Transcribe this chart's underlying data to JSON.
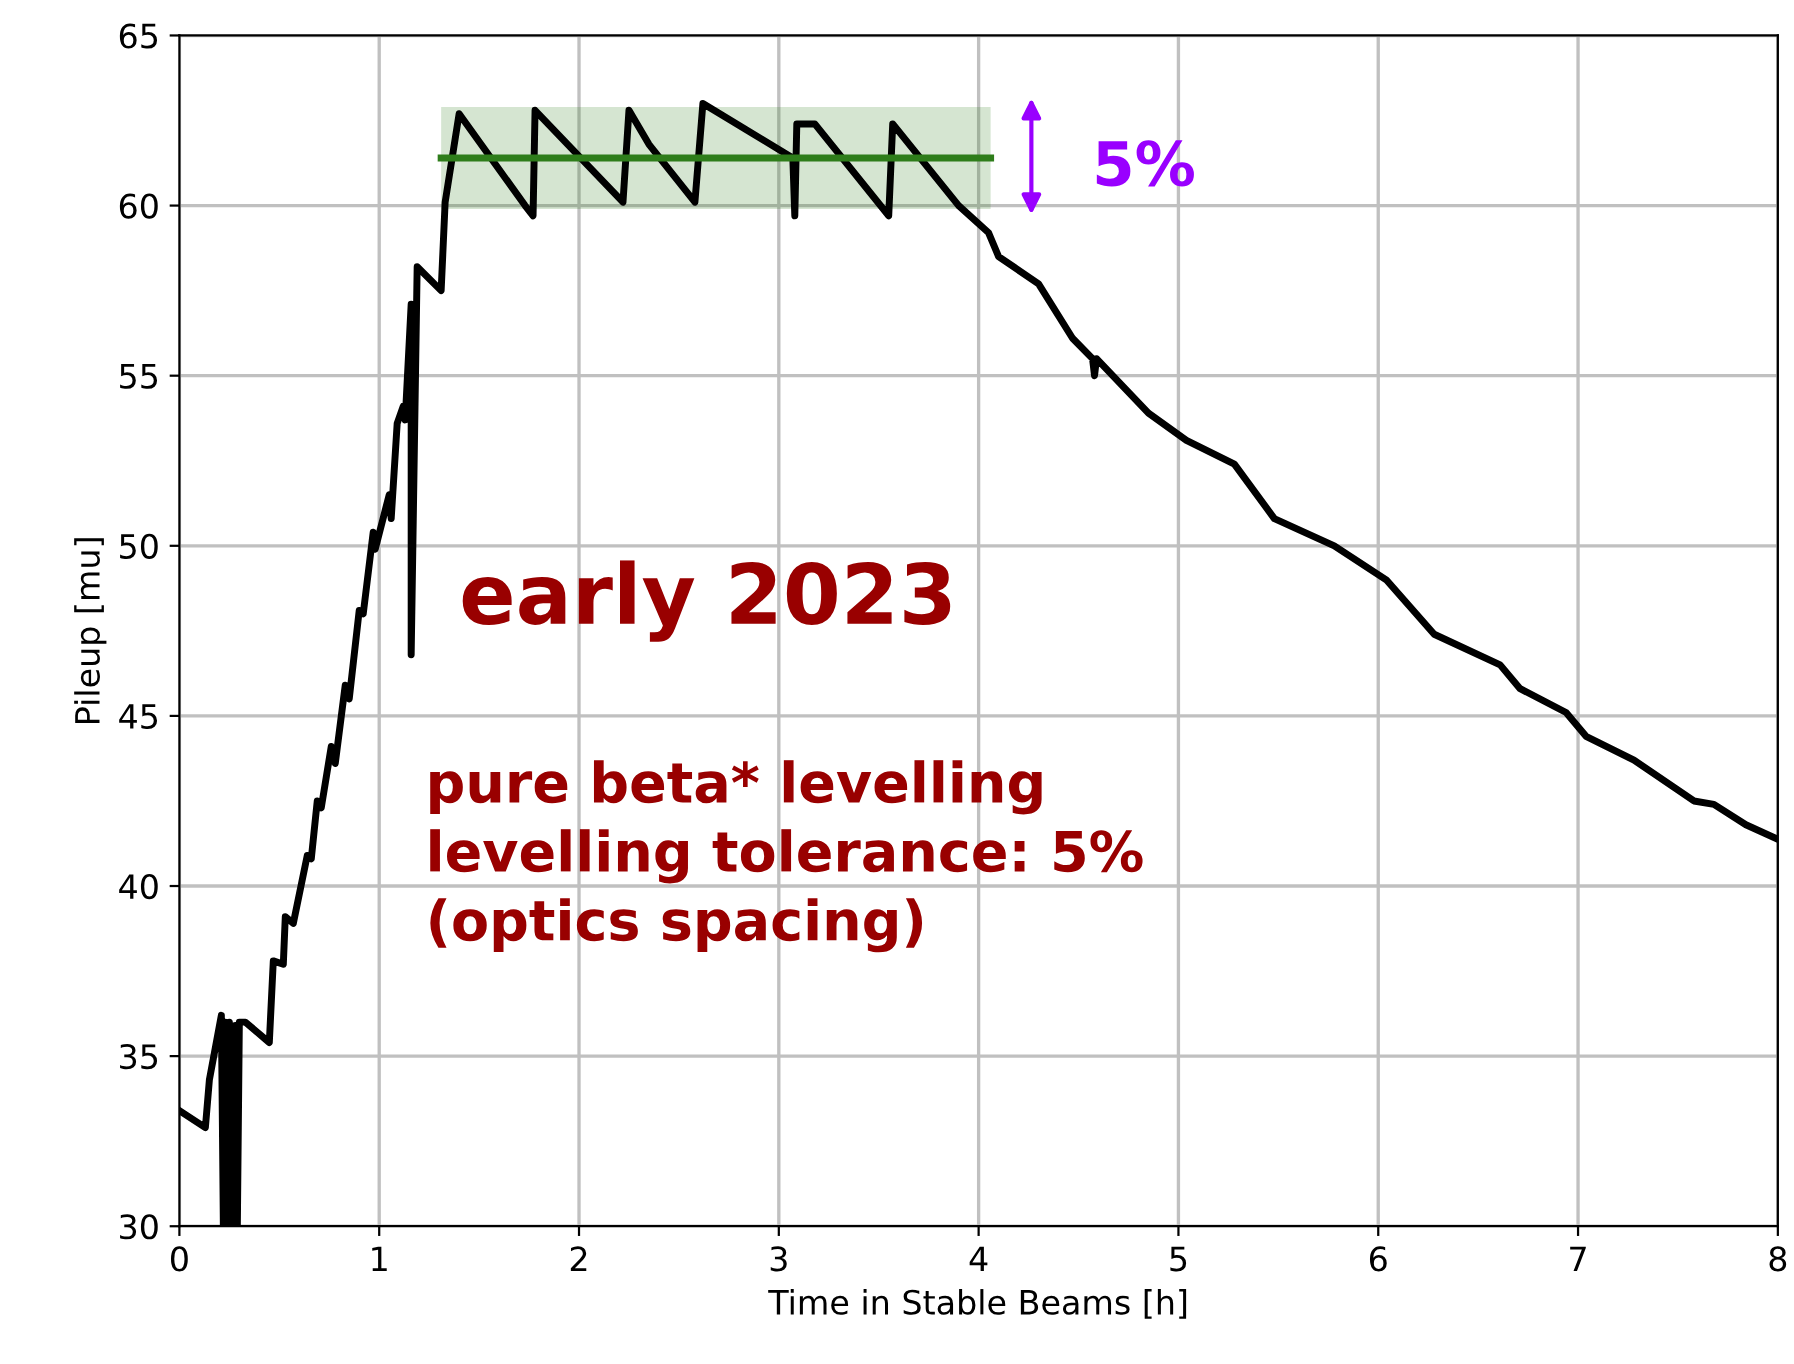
{
  "chart_data": {
    "type": "line",
    "xlabel": "Time in Stable Beams [h]",
    "ylabel": "Pileup [mu]",
    "xlim": [
      0,
      8
    ],
    "xticks": [
      0,
      1,
      2,
      3,
      4,
      5,
      6,
      7,
      8
    ],
    "ylim": [
      30,
      65
    ],
    "yticks": [
      30,
      35,
      40,
      45,
      50,
      55,
      60,
      65
    ],
    "grid": true,
    "series": [
      {
        "color": "#000000",
        "x": [
          0,
          0.13,
          0.15,
          0.21,
          0.22,
          0.23,
          0.24,
          0.25,
          0.26,
          0.28,
          0.29,
          0.3,
          0.33,
          0.45,
          0.47,
          0.52,
          0.53,
          0.57,
          0.64,
          0.66,
          0.69,
          0.71,
          0.76,
          0.78,
          0.83,
          0.85,
          0.9,
          0.92,
          0.97,
          0.98,
          1.05,
          1.06,
          1.09,
          1.12,
          1.13,
          1.16,
          1.16,
          1.19,
          1.31,
          1.33,
          1.4,
          1.73,
          1.77,
          1.78,
          2.22,
          2.25,
          2.35,
          2.58,
          2.62,
          3.07,
          3.08,
          3.09,
          3.18,
          3.55,
          3.57,
          3.9,
          4.05,
          4.1,
          4.3,
          4.47,
          4.57,
          4.58,
          4.59,
          4.85,
          5.04,
          5.28,
          5.48,
          5.78,
          6.04,
          6.28,
          6.61,
          6.71,
          6.94,
          7.04,
          7.28,
          7.58,
          7.68,
          7.84,
          7.99
        ],
        "values": [
          33.4,
          32.9,
          34.3,
          36.2,
          30,
          36,
          30,
          36,
          30,
          35.9,
          30,
          36,
          36.0,
          35.4,
          37.8,
          37.7,
          39.1,
          38.9,
          40.9,
          40.8,
          42.5,
          42.3,
          44.1,
          43.6,
          45.9,
          45.5,
          48.1,
          48.0,
          50.4,
          49.9,
          51.5,
          50.8,
          53.6,
          54.1,
          53.7,
          57.1,
          46.8,
          58.2,
          57.5,
          60.1,
          62.7,
          60.0,
          59.7,
          62.8,
          60.1,
          62.8,
          61.8,
          60.1,
          63.0,
          61.4,
          59.7,
          62.4,
          62.4,
          59.7,
          62.4,
          60.0,
          59.2,
          58.5,
          57.7,
          56.1,
          55.5,
          55.0,
          55.5,
          53.9,
          53.1,
          52.4,
          50.8,
          50.0,
          49.0,
          47.4,
          46.5,
          45.8,
          45.1,
          44.4,
          43.7,
          42.5,
          42.4,
          41.8,
          41.4
        ]
      },
      {
        "color": "#2e7d1a",
        "x": [
          1.31,
          4.06
        ],
        "values": [
          61.4,
          61.4
        ],
        "lower": [
          59.9,
          59.9
        ],
        "upper": [
          62.9,
          62.9
        ]
      }
    ],
    "annotations": [
      "early 2023",
      "pure beta* levelling\nlevelling tolerance: 5%\n(optics spacing)",
      "5%"
    ]
  }
}
